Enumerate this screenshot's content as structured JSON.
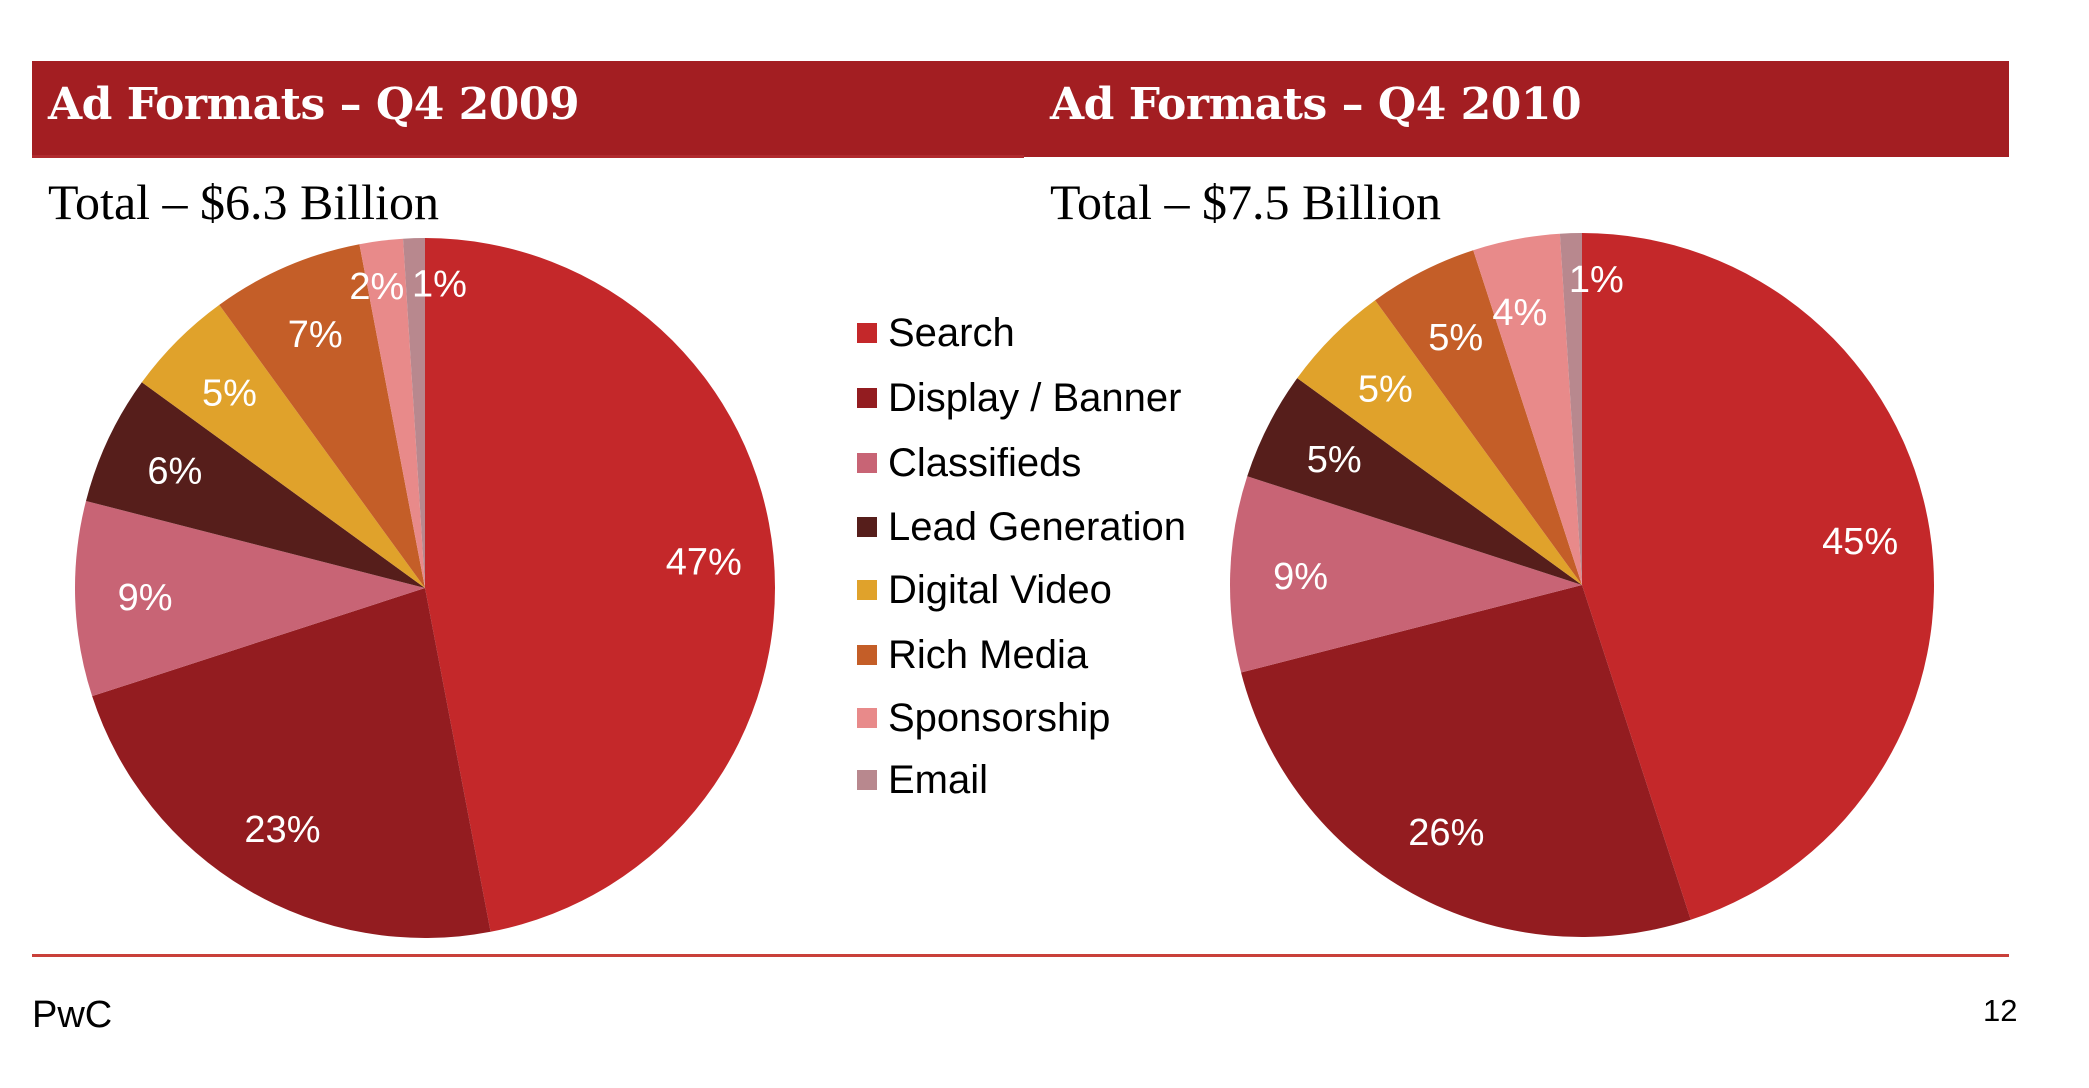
{
  "slide": {
    "footer_brand": "PwC",
    "page_number": "12",
    "header_color": "#A31E22",
    "footer_line_color": "#C9403A"
  },
  "legend": [
    {
      "label": "Search",
      "color": "#C4282A"
    },
    {
      "label": "Display / Banner",
      "color": "#931C20"
    },
    {
      "label": "Classifieds",
      "color": "#C86475"
    },
    {
      "label": "Lead Generation",
      "color": "#561E1B"
    },
    {
      "label": "Digital Video",
      "color": "#E0A22B"
    },
    {
      "label": "Rich Media",
      "color": "#C45E28"
    },
    {
      "label": "Sponsorship",
      "color": "#E88A8A"
    },
    {
      "label": "Email",
      "color": "#B8888E"
    }
  ],
  "chart_data": [
    {
      "type": "pie",
      "title": "Ad Formats – Q4 2009",
      "subtitle": "Total – $6.3 Billion",
      "categories": [
        "Search",
        "Display / Banner",
        "Classifieds",
        "Lead Generation",
        "Digital Video",
        "Rich Media",
        "Sponsorship",
        "Email"
      ],
      "values": [
        47,
        23,
        9,
        6,
        5,
        7,
        2,
        1
      ],
      "labels": [
        "47%",
        "23%",
        "9%",
        "6%",
        "5%",
        "7%",
        "2%",
        "1%"
      ],
      "unit": "percent",
      "start": "12 o'clock, clockwise",
      "legend_position": "center-between-charts"
    },
    {
      "type": "pie",
      "title": "Ad Formats – Q4 2010",
      "subtitle": "Total – $7.5 Billion",
      "categories": [
        "Search",
        "Display / Banner",
        "Classifieds",
        "Lead Generation",
        "Digital Video",
        "Rich Media",
        "Sponsorship",
        "Email"
      ],
      "values": [
        45,
        26,
        9,
        5,
        5,
        5,
        4,
        1
      ],
      "labels": [
        "45%",
        "26%",
        "9%",
        "5%",
        "5%",
        "5%",
        "4%",
        "1%"
      ],
      "unit": "percent",
      "start": "12 o'clock, clockwise",
      "legend_position": "center-between-charts"
    }
  ]
}
